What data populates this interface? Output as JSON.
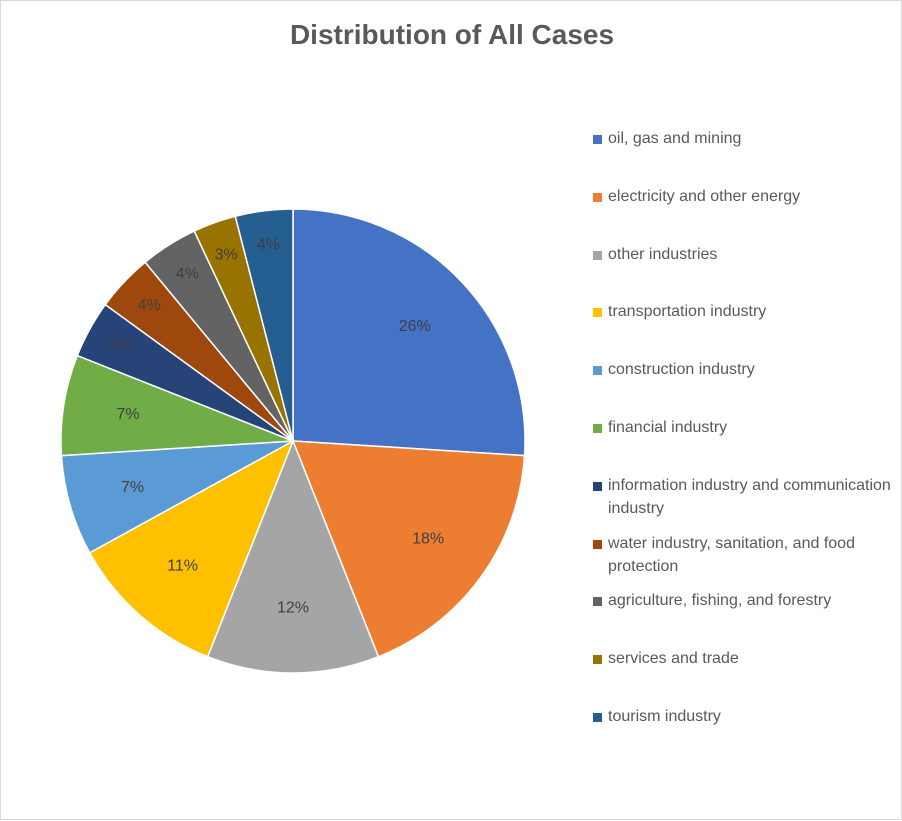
{
  "chart_data": {
    "type": "pie",
    "title": "Distribution of All Cases",
    "legend_position": "right",
    "slices": [
      {
        "name": "oil, gas and mining",
        "value": 26,
        "label": "26%",
        "color": "#4472c4"
      },
      {
        "name": "electricity and other energy",
        "value": 18,
        "label": "18%",
        "color": "#ed7d31"
      },
      {
        "name": "other industries",
        "value": 12,
        "label": "12%",
        "color": "#a5a5a5"
      },
      {
        "name": "transportation industry",
        "value": 11,
        "label": "11%",
        "color": "#ffc000"
      },
      {
        "name": "construction industry",
        "value": 7,
        "label": "7%",
        "color": "#5b9bd5"
      },
      {
        "name": "financial industry",
        "value": 7,
        "label": "7%",
        "color": "#70ad47"
      },
      {
        "name": " information industry and communication industry",
        "value": 4,
        "label": "4%",
        "color": "#264478"
      },
      {
        "name": "water industry, sanitation, and food protection",
        "value": 4,
        "label": "4%",
        "color": "#9e480e"
      },
      {
        "name": "agriculture, fishing, and forestry",
        "value": 4,
        "label": "4%",
        "color": "#636363"
      },
      {
        "name": "services and trade",
        "value": 3,
        "label": "3%",
        "color": "#997300"
      },
      {
        "name": "tourism industry",
        "value": 4,
        "label": "4%",
        "color": "#255e91"
      }
    ]
  }
}
